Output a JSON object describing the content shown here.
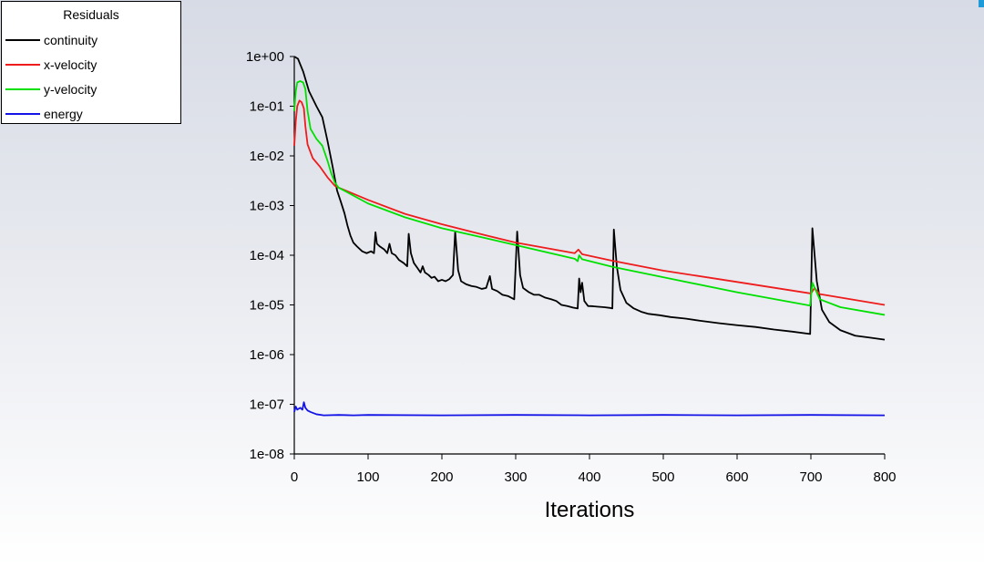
{
  "chart_data": {
    "type": "line",
    "title": "",
    "xlabel": "Iterations",
    "ylabel": "",
    "yscale": "log",
    "xlim": [
      0,
      800
    ],
    "ylim": [
      1e-08,
      1
    ],
    "x_ticks": [
      0,
      100,
      200,
      300,
      400,
      500,
      600,
      700,
      800
    ],
    "x_tick_labels": [
      "0",
      "100",
      "200",
      "300",
      "400",
      "500",
      "600",
      "700",
      "800"
    ],
    "y_ticks": [
      1e-08,
      1e-07,
      1e-06,
      1e-05,
      0.0001,
      0.001,
      0.01,
      0.1,
      1
    ],
    "y_tick_labels": [
      "1e-08",
      "1e-07",
      "1e-06",
      "1e-05",
      "1e-04",
      "1e-03",
      "1e-02",
      "1e-01",
      "1e+00"
    ],
    "grid": false,
    "legend": {
      "title": "Residuals",
      "position": "top-left"
    },
    "series": [
      {
        "name": "continuity",
        "color": "#000000",
        "points": [
          [
            0,
            1
          ],
          [
            5,
            0.9
          ],
          [
            12,
            0.5
          ],
          [
            20,
            0.2
          ],
          [
            30,
            0.1
          ],
          [
            38,
            0.06
          ],
          [
            45,
            0.02
          ],
          [
            52,
            0.006
          ],
          [
            58,
            0.002
          ],
          [
            63,
            0.0012
          ],
          [
            68,
            0.0007
          ],
          [
            72,
            0.0004
          ],
          [
            76,
            0.00025
          ],
          [
            80,
            0.00018
          ],
          [
            85,
            0.00015
          ],
          [
            92,
            0.00012
          ],
          [
            98,
            0.00011
          ],
          [
            104,
            0.00012
          ],
          [
            108,
            0.00011
          ],
          [
            110,
            0.00029
          ],
          [
            112,
            0.00017
          ],
          [
            116,
            0.00015
          ],
          [
            122,
            0.00013
          ],
          [
            126,
            0.00011
          ],
          [
            129,
            0.00017
          ],
          [
            132,
            0.00011
          ],
          [
            137,
            0.0001
          ],
          [
            142,
            8e-05
          ],
          [
            148,
            7e-05
          ],
          [
            153,
            6e-05
          ],
          [
            155,
            0.00027
          ],
          [
            158,
            0.00011
          ],
          [
            162,
            7e-05
          ],
          [
            167,
            5.5e-05
          ],
          [
            171,
            4.5e-05
          ],
          [
            174,
            6e-05
          ],
          [
            177,
            4.5e-05
          ],
          [
            182,
            4e-05
          ],
          [
            186,
            3.5e-05
          ],
          [
            190,
            3.7e-05
          ],
          [
            195,
            3e-05
          ],
          [
            200,
            3.2e-05
          ],
          [
            205,
            3e-05
          ],
          [
            210,
            3.3e-05
          ],
          [
            215,
            4e-05
          ],
          [
            218,
            0.0003
          ],
          [
            222,
            5e-05
          ],
          [
            226,
            3e-05
          ],
          [
            233,
            2.6e-05
          ],
          [
            240,
            2.4e-05
          ],
          [
            247,
            2.3e-05
          ],
          [
            254,
            2.1e-05
          ],
          [
            260,
            2.2e-05
          ],
          [
            265,
            3.8e-05
          ],
          [
            268,
            2.1e-05
          ],
          [
            275,
            1.9e-05
          ],
          [
            282,
            1.6e-05
          ],
          [
            290,
            1.5e-05
          ],
          [
            298,
            1.3e-05
          ],
          [
            302,
            0.0003
          ],
          [
            306,
            4e-05
          ],
          [
            310,
            2.2e-05
          ],
          [
            318,
            1.8e-05
          ],
          [
            325,
            1.6e-05
          ],
          [
            332,
            1.6e-05
          ],
          [
            340,
            1.4e-05
          ],
          [
            348,
            1.3e-05
          ],
          [
            355,
            1.2e-05
          ],
          [
            362,
            1e-05
          ],
          [
            370,
            9.5e-06
          ],
          [
            378,
            8.8e-06
          ],
          [
            384,
            8.5e-06
          ],
          [
            386,
            3.4e-05
          ],
          [
            388,
            1.8e-05
          ],
          [
            390,
            2.8e-05
          ],
          [
            393,
            1.2e-05
          ],
          [
            398,
            9.5e-06
          ],
          [
            405,
            9.4e-06
          ],
          [
            412,
            9.2e-06
          ],
          [
            420,
            9e-06
          ],
          [
            428,
            8.7e-06
          ],
          [
            431,
            8.5e-06
          ],
          [
            433,
            0.00033
          ],
          [
            437,
            6e-05
          ],
          [
            442,
            2e-05
          ],
          [
            450,
            1.1e-05
          ],
          [
            460,
            8.5e-06
          ],
          [
            470,
            7.3e-06
          ],
          [
            480,
            6.6e-06
          ],
          [
            495,
            6.2e-06
          ],
          [
            510,
            5.7e-06
          ],
          [
            530,
            5.3e-06
          ],
          [
            550,
            4.8e-06
          ],
          [
            575,
            4.3e-06
          ],
          [
            600,
            3.9e-06
          ],
          [
            625,
            3.6e-06
          ],
          [
            650,
            3.2e-06
          ],
          [
            675,
            2.9e-06
          ],
          [
            699,
            2.6e-06
          ],
          [
            702,
            0.00035
          ],
          [
            708,
            3e-05
          ],
          [
            715,
            8e-06
          ],
          [
            725,
            4.5e-06
          ],
          [
            740,
            3.1e-06
          ],
          [
            760,
            2.4e-06
          ],
          [
            780,
            2.2e-06
          ],
          [
            800,
            2e-06
          ]
        ]
      },
      {
        "name": "x-velocity",
        "color": "#ee1c1c",
        "points": [
          [
            0,
            0.016
          ],
          [
            2,
            0.05
          ],
          [
            4,
            0.1
          ],
          [
            7,
            0.13
          ],
          [
            10,
            0.12
          ],
          [
            13,
            0.09
          ],
          [
            15,
            0.04
          ],
          [
            18,
            0.017
          ],
          [
            25,
            0.009
          ],
          [
            35,
            0.006
          ],
          [
            45,
            0.0037
          ],
          [
            55,
            0.0025
          ],
          [
            60,
            0.0023
          ],
          [
            100,
            0.0013
          ],
          [
            150,
            0.00068
          ],
          [
            200,
            0.00042
          ],
          [
            260,
            0.00025
          ],
          [
            300,
            0.00018
          ],
          [
            380,
            0.00011
          ],
          [
            385,
            0.00013
          ],
          [
            390,
            0.000105
          ],
          [
            430,
            7.8e-05
          ],
          [
            500,
            4.9e-05
          ],
          [
            600,
            2.9e-05
          ],
          [
            700,
            1.7e-05
          ],
          [
            705,
            2.2e-05
          ],
          [
            712,
            1.65e-05
          ],
          [
            800,
            1e-05
          ]
        ]
      },
      {
        "name": "y-velocity",
        "color": "#00e000",
        "points": [
          [
            0,
            0.08
          ],
          [
            2,
            0.2
          ],
          [
            4,
            0.3
          ],
          [
            8,
            0.32
          ],
          [
            12,
            0.3
          ],
          [
            15,
            0.22
          ],
          [
            18,
            0.08
          ],
          [
            22,
            0.035
          ],
          [
            30,
            0.022
          ],
          [
            38,
            0.016
          ],
          [
            45,
            0.008
          ],
          [
            50,
            0.0045
          ],
          [
            55,
            0.0029
          ],
          [
            60,
            0.0023
          ],
          [
            100,
            0.0011
          ],
          [
            150,
            0.00058
          ],
          [
            200,
            0.00035
          ],
          [
            260,
            0.00022
          ],
          [
            300,
            0.00016
          ],
          [
            380,
            8.5e-05
          ],
          [
            384,
            7.6e-05
          ],
          [
            386,
            0.0001
          ],
          [
            390,
            8.3e-05
          ],
          [
            430,
            5.9e-05
          ],
          [
            500,
            3.6e-05
          ],
          [
            600,
            1.8e-05
          ],
          [
            699,
            9.7e-06
          ],
          [
            702,
            2.8e-05
          ],
          [
            712,
            1.3e-05
          ],
          [
            740,
            9e-06
          ],
          [
            800,
            6.3e-06
          ]
        ]
      },
      {
        "name": "energy",
        "color": "#1414e6",
        "points": [
          [
            0,
            7e-08
          ],
          [
            2,
            9e-08
          ],
          [
            4,
            7.8e-08
          ],
          [
            8,
            8.5e-08
          ],
          [
            11,
            7.8e-08
          ],
          [
            13,
            1.1e-07
          ],
          [
            15,
            8.5e-08
          ],
          [
            18,
            7.5e-08
          ],
          [
            22,
            7e-08
          ],
          [
            30,
            6.3e-08
          ],
          [
            40,
            6e-08
          ],
          [
            60,
            6.1e-08
          ],
          [
            80,
            6e-08
          ],
          [
            100,
            6.1e-08
          ],
          [
            200,
            6e-08
          ],
          [
            300,
            6.1e-08
          ],
          [
            400,
            6e-08
          ],
          [
            500,
            6.1e-08
          ],
          [
            600,
            6e-08
          ],
          [
            700,
            6.1e-08
          ],
          [
            800,
            6e-08
          ]
        ]
      }
    ]
  }
}
